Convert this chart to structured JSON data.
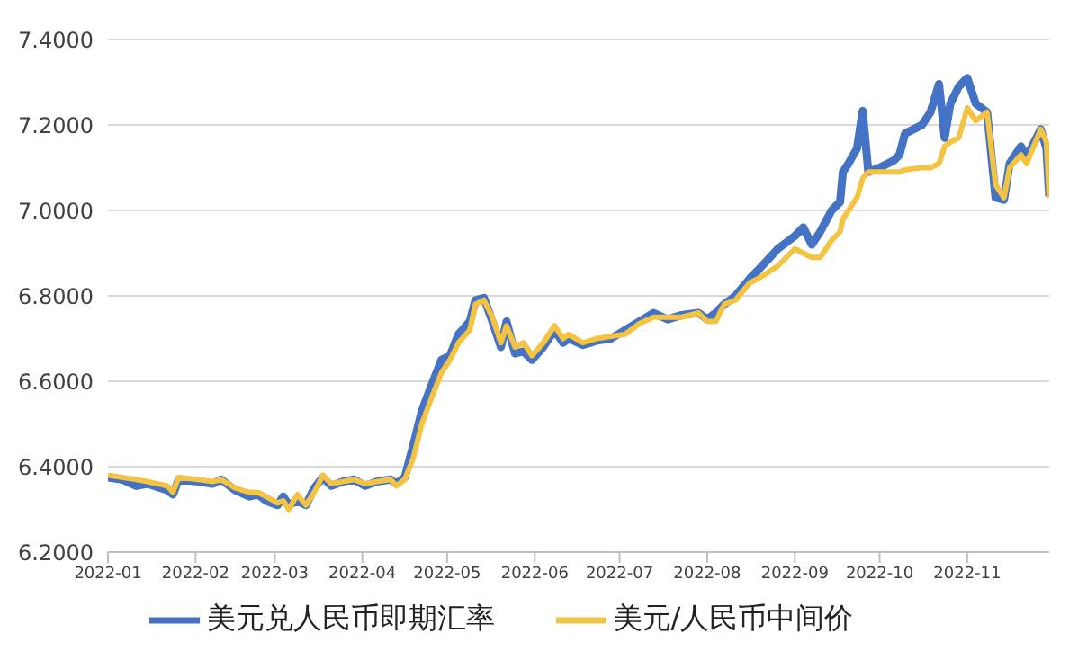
{
  "chart_data": {
    "type": "line",
    "x": [
      "2022-01-01",
      "2022-01-06",
      "2022-01-11",
      "2022-01-15",
      "2022-01-22",
      "2022-01-24",
      "2022-01-26",
      "2022-02-02",
      "2022-02-07",
      "2022-02-10",
      "2022-02-15",
      "2022-02-20",
      "2022-02-23",
      "2022-02-26",
      "2022-03-02",
      "2022-03-04",
      "2022-03-06",
      "2022-03-09",
      "2022-03-12",
      "2022-03-15",
      "2022-03-18",
      "2022-03-21",
      "2022-03-25",
      "2022-03-29",
      "2022-04-02",
      "2022-04-06",
      "2022-04-11",
      "2022-04-13",
      "2022-04-16",
      "2022-04-19",
      "2022-04-22",
      "2022-04-26",
      "2022-04-29",
      "2022-05-02",
      "2022-05-05",
      "2022-05-09",
      "2022-05-11",
      "2022-05-14",
      "2022-05-17",
      "2022-05-20",
      "2022-05-22",
      "2022-05-25",
      "2022-05-28",
      "2022-05-31",
      "2022-06-04",
      "2022-06-08",
      "2022-06-11",
      "2022-06-13",
      "2022-06-18",
      "2022-06-23",
      "2022-06-28",
      "2022-07-03",
      "2022-07-08",
      "2022-07-13",
      "2022-07-18",
      "2022-07-23",
      "2022-07-29",
      "2022-08-01",
      "2022-08-04",
      "2022-08-07",
      "2022-08-11",
      "2022-08-16",
      "2022-08-19",
      "2022-08-26",
      "2022-09-01",
      "2022-09-04",
      "2022-09-07",
      "2022-09-10",
      "2022-09-14",
      "2022-09-17",
      "2022-09-18",
      "2022-09-20",
      "2022-09-23",
      "2022-09-25",
      "2022-09-27",
      "2022-10-01",
      "2022-10-06",
      "2022-10-08",
      "2022-10-10",
      "2022-10-16",
      "2022-10-19",
      "2022-10-22",
      "2022-10-24",
      "2022-10-26",
      "2022-10-29",
      "2022-11-01",
      "2022-11-04",
      "2022-11-08",
      "2022-11-11",
      "2022-11-14",
      "2022-11-16",
      "2022-11-20",
      "2022-11-22",
      "2022-11-27",
      "2022-11-29",
      "2022-11-30"
    ],
    "series": [
      {
        "name": "美元兑人民币即期汇率",
        "color": "#4472c4",
        "values": [
          6.375,
          6.37,
          6.355,
          6.36,
          6.345,
          6.335,
          6.37,
          6.365,
          6.36,
          6.37,
          6.345,
          6.33,
          6.335,
          6.32,
          6.31,
          6.33,
          6.31,
          6.32,
          6.31,
          6.35,
          6.375,
          6.355,
          6.365,
          6.37,
          6.355,
          6.365,
          6.37,
          6.36,
          6.375,
          6.45,
          6.53,
          6.6,
          6.65,
          6.66,
          6.71,
          6.74,
          6.79,
          6.795,
          6.74,
          6.68,
          6.74,
          6.665,
          6.67,
          6.65,
          6.68,
          6.72,
          6.69,
          6.7,
          6.685,
          6.695,
          6.7,
          6.72,
          6.74,
          6.76,
          6.745,
          6.755,
          6.76,
          6.745,
          6.76,
          6.78,
          6.8,
          6.84,
          6.86,
          6.91,
          6.94,
          6.96,
          6.92,
          6.95,
          7.0,
          7.02,
          7.09,
          7.11,
          7.145,
          7.233,
          7.09,
          7.1,
          7.117,
          7.13,
          7.18,
          7.2,
          7.23,
          7.296,
          7.17,
          7.25,
          7.29,
          7.31,
          7.25,
          7.23,
          7.03,
          7.025,
          7.11,
          7.15,
          7.125,
          7.19,
          7.145,
          7.033
        ]
      },
      {
        "name": "美元/人民币中间价",
        "color": "#f5c342",
        "values": [
          6.38,
          6.375,
          6.37,
          6.365,
          6.355,
          6.34,
          6.375,
          6.37,
          6.365,
          6.37,
          6.35,
          6.34,
          6.34,
          6.33,
          6.315,
          6.32,
          6.3,
          6.335,
          6.31,
          6.34,
          6.38,
          6.36,
          6.365,
          6.37,
          6.36,
          6.365,
          6.37,
          6.355,
          6.37,
          6.42,
          6.5,
          6.57,
          6.62,
          6.65,
          6.69,
          6.72,
          6.78,
          6.79,
          6.75,
          6.69,
          6.73,
          6.68,
          6.69,
          6.66,
          6.69,
          6.73,
          6.7,
          6.71,
          6.69,
          6.7,
          6.705,
          6.71,
          6.735,
          6.75,
          6.75,
          6.75,
          6.76,
          6.74,
          6.74,
          6.78,
          6.79,
          6.83,
          6.84,
          6.87,
          6.91,
          6.9,
          6.89,
          6.89,
          6.93,
          6.95,
          6.98,
          7.0,
          7.03,
          7.075,
          7.09,
          7.09,
          7.09,
          7.09,
          7.095,
          7.1,
          7.1,
          7.11,
          7.15,
          7.16,
          7.17,
          7.24,
          7.21,
          7.23,
          7.06,
          7.03,
          7.1,
          7.13,
          7.11,
          7.19,
          7.16,
          7.03
        ]
      }
    ],
    "xlim": [
      "2022-01-01",
      "2022-11-30"
    ],
    "xticks": [
      "2022-01",
      "2022-02",
      "2022-03",
      "2022-04",
      "2022-05",
      "2022-06",
      "2022-07",
      "2022-08",
      "2022-09",
      "2022-10",
      "2022-11"
    ],
    "ylim": [
      6.2,
      7.4
    ],
    "yticks": [
      {
        "value": 6.2,
        "label": "6.2000"
      },
      {
        "value": 6.4,
        "label": "6.4000"
      },
      {
        "value": 6.6,
        "label": "6.6000"
      },
      {
        "value": 6.8,
        "label": "6.8000"
      },
      {
        "value": 7.0,
        "label": "7.0000"
      },
      {
        "value": 7.2,
        "label": "7.2000"
      },
      {
        "value": 7.4,
        "label": "7.4000"
      }
    ],
    "grid": "y",
    "legend": "bottom",
    "marker": "none",
    "line_style": "solid"
  }
}
